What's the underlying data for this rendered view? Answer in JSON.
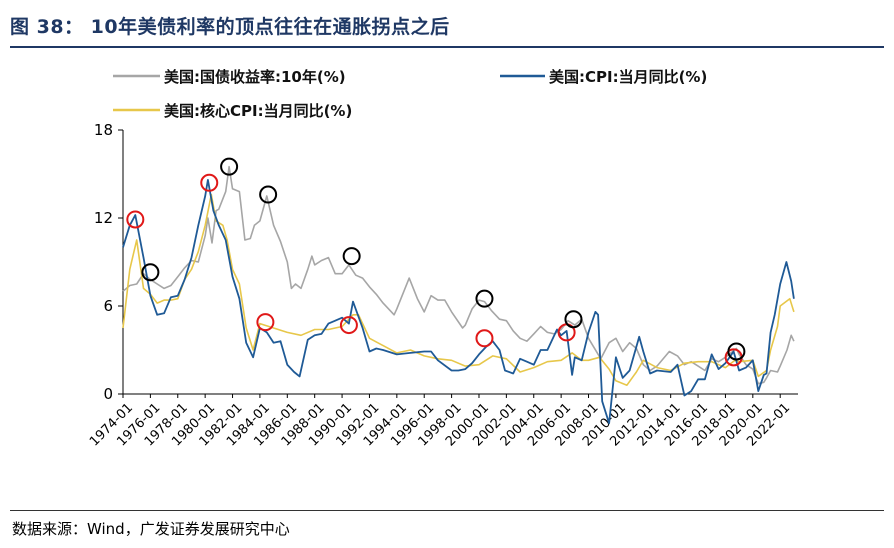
{
  "figure": {
    "title": "图 38：  10年美债利率的顶点往往在通胀拐点之后",
    "source": "数据来源：Wind，广发证券发展研究中心"
  },
  "chart_data": {
    "type": "line",
    "ylim": [
      0,
      18
    ],
    "yticks": [
      0,
      6,
      12,
      18
    ],
    "xlim": [
      1974.0,
      2023.3
    ],
    "xticks": [
      "1974-01",
      "1976-01",
      "1978-01",
      "1980-01",
      "1982-01",
      "1984-01",
      "1986-01",
      "1988-01",
      "1990-01",
      "1992-01",
      "1994-01",
      "1996-01",
      "1998-01",
      "2000-01",
      "2002-01",
      "2004-01",
      "2006-01",
      "2008-01",
      "2010-01",
      "2012-01",
      "2014-01",
      "2016-01",
      "2018-01",
      "2020-01",
      "2022-01"
    ],
    "grid": false,
    "legend_position": "top",
    "series": [
      {
        "name": "美国:国债收益率:10年(%)",
        "color": "#a6a6a6",
        "x": [
          1974.0,
          1974.5,
          1975.0,
          1975.5,
          1976.0,
          1976.5,
          1977.0,
          1977.5,
          1978.0,
          1978.5,
          1979.0,
          1979.5,
          1980.0,
          1980.2,
          1980.5,
          1980.8,
          1981.0,
          1981.5,
          1981.75,
          1982.0,
          1982.5,
          1982.9,
          1983.3,
          1983.6,
          1984.0,
          1984.5,
          1985.0,
          1985.5,
          1986.0,
          1986.3,
          1986.6,
          1987.0,
          1987.5,
          1987.8,
          1988.0,
          1988.5,
          1989.0,
          1989.5,
          1990.0,
          1990.5,
          1991.0,
          1991.5,
          1992.0,
          1992.5,
          1993.0,
          1993.8,
          1994.0,
          1994.9,
          1995.5,
          1996.0,
          1996.5,
          1997.0,
          1997.5,
          1998.0,
          1998.8,
          1999.0,
          1999.5,
          2000.0,
          2000.4,
          2000.9,
          2001.5,
          2002.0,
          2002.5,
          2003.0,
          2003.5,
          2004.0,
          2004.5,
          2005.0,
          2005.5,
          2006.0,
          2006.5,
          2007.0,
          2007.5,
          2008.0,
          2008.9,
          2009.5,
          2010.0,
          2010.5,
          2011.0,
          2011.5,
          2012.0,
          2012.5,
          2013.0,
          2013.9,
          2014.5,
          2015.0,
          2015.5,
          2016.0,
          2016.5,
          2017.0,
          2017.5,
          2018.0,
          2018.8,
          2019.0,
          2019.5,
          2020.0,
          2020.4,
          2020.8,
          2021.0,
          2021.3,
          2021.8,
          2022.0,
          2022.5,
          2022.8,
          2023.0
        ],
        "values": [
          7.0,
          7.4,
          7.5,
          8.2,
          7.8,
          7.5,
          7.2,
          7.4,
          8.0,
          8.6,
          9.1,
          9.0,
          10.8,
          12.0,
          10.3,
          12.5,
          12.6,
          13.8,
          15.5,
          14.0,
          13.8,
          10.5,
          10.6,
          11.5,
          11.8,
          13.5,
          11.5,
          10.4,
          9.0,
          7.2,
          7.5,
          7.2,
          8.5,
          9.4,
          8.8,
          9.1,
          9.3,
          8.2,
          8.2,
          8.8,
          8.1,
          7.9,
          7.3,
          6.8,
          6.2,
          5.4,
          5.8,
          7.9,
          6.5,
          5.6,
          6.7,
          6.4,
          6.4,
          5.6,
          4.5,
          4.7,
          5.8,
          6.4,
          6.3,
          5.7,
          5.1,
          5.0,
          4.3,
          3.8,
          3.6,
          4.1,
          4.6,
          4.2,
          4.1,
          4.4,
          5.0,
          4.7,
          5.1,
          3.8,
          2.4,
          3.5,
          3.8,
          2.9,
          3.5,
          3.1,
          2.0,
          1.6,
          1.9,
          2.9,
          2.6,
          2.0,
          2.2,
          1.9,
          1.6,
          2.4,
          2.2,
          2.5,
          3.1,
          2.7,
          2.0,
          1.7,
          0.7,
          0.8,
          1.1,
          1.6,
          1.5,
          1.9,
          3.0,
          4.0,
          3.6
        ]
      },
      {
        "name": "美国:CPI:当月同比(%)",
        "color": "#1f5a96",
        "x": [
          1974.0,
          1974.5,
          1974.9,
          1975.5,
          1976.0,
          1976.5,
          1977.0,
          1977.5,
          1978.0,
          1978.5,
          1979.0,
          1979.5,
          1980.0,
          1980.2,
          1980.6,
          1981.0,
          1981.5,
          1982.0,
          1982.5,
          1983.0,
          1983.5,
          1984.0,
          1984.5,
          1985.0,
          1985.5,
          1986.0,
          1986.5,
          1986.9,
          1987.5,
          1988.0,
          1988.5,
          1989.0,
          1989.5,
          1990.0,
          1990.5,
          1990.8,
          1991.5,
          1992.0,
          1992.5,
          1993.0,
          1994.0,
          1995.0,
          1996.0,
          1996.5,
          1997.0,
          1998.0,
          1998.5,
          1999.0,
          1999.5,
          2000.0,
          2000.5,
          2001.0,
          2001.5,
          2001.9,
          2002.5,
          2003.0,
          2003.5,
          2004.0,
          2004.5,
          2005.0,
          2005.7,
          2006.0,
          2006.4,
          2006.8,
          2007.0,
          2007.5,
          2008.0,
          2008.5,
          2008.7,
          2009.0,
          2009.5,
          2010.0,
          2010.5,
          2011.0,
          2011.7,
          2012.0,
          2012.5,
          2013.0,
          2014.0,
          2014.5,
          2015.0,
          2015.5,
          2016.0,
          2016.5,
          2017.0,
          2017.5,
          2018.0,
          2018.6,
          2019.0,
          2019.5,
          2020.0,
          2020.4,
          2020.8,
          2021.0,
          2021.3,
          2021.6,
          2022.0,
          2022.45,
          2022.8,
          2023.0
        ],
        "values": [
          10.0,
          11.5,
          12.2,
          9.3,
          6.7,
          5.4,
          5.5,
          6.6,
          6.7,
          7.8,
          9.3,
          11.5,
          13.5,
          14.6,
          12.5,
          11.5,
          10.5,
          8.0,
          6.5,
          3.5,
          2.5,
          4.5,
          4.2,
          3.5,
          3.6,
          2.0,
          1.5,
          1.2,
          3.7,
          4.0,
          4.1,
          4.8,
          5.0,
          5.2,
          4.8,
          6.3,
          4.5,
          2.9,
          3.1,
          3.0,
          2.7,
          2.8,
          2.9,
          2.9,
          2.3,
          1.6,
          1.6,
          1.7,
          2.1,
          2.7,
          3.2,
          3.6,
          3.0,
          1.6,
          1.4,
          2.4,
          2.2,
          2.0,
          3.0,
          3.0,
          4.4,
          4.0,
          4.3,
          1.3,
          2.5,
          2.3,
          4.2,
          5.6,
          5.4,
          -0.5,
          -2.0,
          2.5,
          1.1,
          1.6,
          3.9,
          2.9,
          1.4,
          1.6,
          1.5,
          2.0,
          -0.1,
          0.2,
          1.0,
          1.0,
          2.7,
          1.7,
          2.1,
          2.9,
          1.6,
          1.8,
          2.3,
          0.2,
          1.3,
          1.4,
          4.2,
          5.4,
          7.5,
          9.0,
          7.7,
          6.5
        ]
      },
      {
        "name": "美国:核心CPI:当月同比(%)",
        "color": "#e7c74a",
        "x": [
          1974.0,
          1974.5,
          1975.0,
          1975.5,
          1976.0,
          1976.5,
          1977.0,
          1977.5,
          1978.0,
          1978.5,
          1979.0,
          1979.5,
          1980.0,
          1980.45,
          1980.8,
          1981.3,
          1981.6,
          1982.0,
          1982.5,
          1983.0,
          1983.5,
          1984.0,
          1985.0,
          1986.0,
          1987.0,
          1988.0,
          1989.0,
          1990.0,
          1990.8,
          1991.2,
          1991.5,
          1992.0,
          1993.0,
          1994.0,
          1995.0,
          1996.0,
          1997.0,
          1998.0,
          1999.0,
          2000.0,
          2001.0,
          2002.0,
          2003.0,
          2004.0,
          2005.0,
          2006.0,
          2006.8,
          2007.5,
          2008.0,
          2008.8,
          2009.5,
          2010.0,
          2010.8,
          2011.5,
          2012.0,
          2013.0,
          2014.0,
          2015.0,
          2016.0,
          2017.0,
          2018.0,
          2018.7,
          2019.0,
          2020.0,
          2020.4,
          2021.0,
          2021.3,
          2021.8,
          2022.0,
          2022.7,
          2023.0
        ],
        "values": [
          4.5,
          8.5,
          10.5,
          7.2,
          6.8,
          6.2,
          6.4,
          6.4,
          6.5,
          7.8,
          8.5,
          9.7,
          11.5,
          13.6,
          11.8,
          11.5,
          10.5,
          8.5,
          7.5,
          4.5,
          3.0,
          4.8,
          4.5,
          4.2,
          4.0,
          4.4,
          4.4,
          4.6,
          5.4,
          5.4,
          4.8,
          3.8,
          3.3,
          2.8,
          3.0,
          2.6,
          2.4,
          2.3,
          1.9,
          2.0,
          2.6,
          2.4,
          1.5,
          1.8,
          2.2,
          2.3,
          2.8,
          2.3,
          2.3,
          2.5,
          1.7,
          0.9,
          0.6,
          1.5,
          2.3,
          1.8,
          1.6,
          2.1,
          2.2,
          2.2,
          1.8,
          2.3,
          2.2,
          2.3,
          1.2,
          1.6,
          3.0,
          4.6,
          6.0,
          6.5,
          5.6
        ]
      }
    ],
    "annotations": [
      {
        "x": 1974.9,
        "y": 11.9,
        "color": "#e01818"
      },
      {
        "x": 1976.0,
        "y": 8.3,
        "color": "#000000"
      },
      {
        "x": 1980.3,
        "y": 14.4,
        "color": "#e01818"
      },
      {
        "x": 1981.75,
        "y": 15.5,
        "color": "#000000"
      },
      {
        "x": 1984.4,
        "y": 4.9,
        "color": "#e01818"
      },
      {
        "x": 1984.6,
        "y": 13.6,
        "color": "#000000"
      },
      {
        "x": 1990.5,
        "y": 4.7,
        "color": "#e01818"
      },
      {
        "x": 1990.7,
        "y": 9.4,
        "color": "#000000"
      },
      {
        "x": 2000.4,
        "y": 3.8,
        "color": "#e01818"
      },
      {
        "x": 2000.4,
        "y": 6.5,
        "color": "#000000"
      },
      {
        "x": 2006.4,
        "y": 4.2,
        "color": "#e01818"
      },
      {
        "x": 2006.9,
        "y": 5.1,
        "color": "#000000"
      },
      {
        "x": 2018.6,
        "y": 2.5,
        "color": "#e01818"
      },
      {
        "x": 2018.8,
        "y": 2.9,
        "color": "#000000"
      }
    ]
  }
}
